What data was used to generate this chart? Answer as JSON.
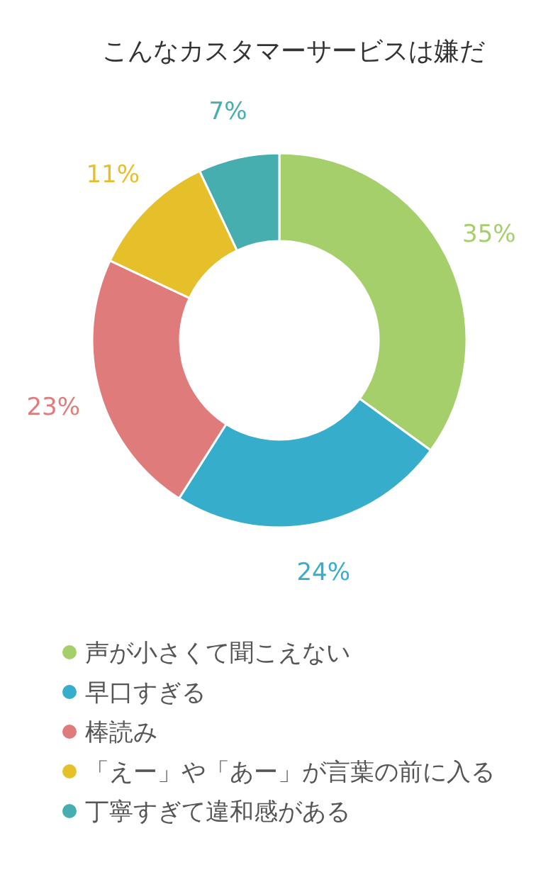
{
  "chart_data": {
    "type": "donut",
    "title": "こんなカスタマーサービスは嫌だ",
    "categories": [
      "声が小さくて聞こえない",
      "早口すぎる",
      "棒読み",
      "「えー」や「あー」が言葉の前に入る",
      "丁寧すぎて違和感がある"
    ],
    "values": [
      35,
      24,
      23,
      11,
      7
    ],
    "colors": [
      "#a5cf6a",
      "#35adcb",
      "#e07b7b",
      "#e5c02a",
      "#46aeae"
    ],
    "value_labels": [
      "35%",
      "24%",
      "23%",
      "11%",
      "7%"
    ],
    "legend": "bottom"
  }
}
